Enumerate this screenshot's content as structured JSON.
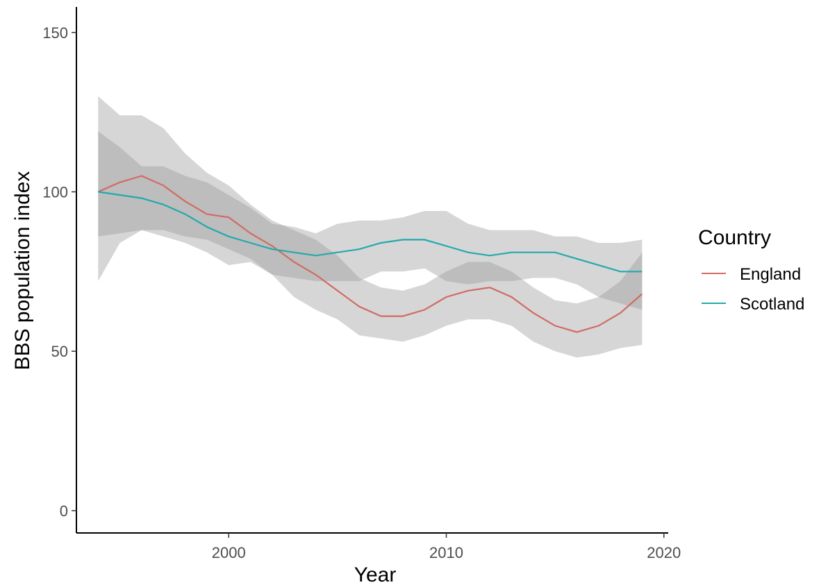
{
  "chart_data": {
    "type": "line",
    "title": "",
    "xlabel": "Year",
    "ylabel": "BBS population index",
    "xlim": [
      1993,
      2020.2
    ],
    "ylim": [
      -7,
      158
    ],
    "x_ticks": [
      2000,
      2010,
      2020
    ],
    "y_ticks": [
      0,
      50,
      100,
      150
    ],
    "grid": false,
    "legend": {
      "title": "Country",
      "position": "right"
    },
    "x": [
      1994,
      1995,
      1996,
      1997,
      1998,
      1999,
      2000,
      2001,
      2002,
      2003,
      2004,
      2005,
      2006,
      2007,
      2008,
      2009,
      2010,
      2011,
      2012,
      2013,
      2014,
      2015,
      2016,
      2017,
      2018,
      2019
    ],
    "series": [
      {
        "name": "England",
        "color": "#d06b63",
        "values": [
          100,
          103,
          105,
          102,
          97,
          93,
          92,
          87,
          83,
          78,
          74,
          69,
          64,
          61,
          61,
          63,
          67,
          69,
          70,
          67,
          62,
          58,
          56,
          58,
          62,
          68
        ],
        "ci_lower": [
          72,
          84,
          88,
          88,
          86,
          85,
          82,
          79,
          74,
          67,
          63,
          60,
          55,
          54,
          53,
          55,
          58,
          60,
          60,
          58,
          53,
          50,
          48,
          49,
          51,
          52
        ],
        "ci_upper": [
          130,
          124,
          124,
          120,
          112,
          106,
          102,
          96,
          91,
          88,
          85,
          80,
          73,
          70,
          69,
          71,
          75,
          78,
          78,
          75,
          70,
          66,
          65,
          67,
          72,
          81
        ]
      },
      {
        "name": "Scotland",
        "color": "#22a9ad",
        "values": [
          100,
          99,
          98,
          96,
          93,
          89,
          86,
          84,
          82,
          81,
          80,
          81,
          82,
          84,
          85,
          85,
          83,
          81,
          80,
          81,
          81,
          81,
          79,
          77,
          75,
          75
        ],
        "ci_lower": [
          86,
          87,
          88,
          86,
          84,
          81,
          77,
          78,
          74,
          73,
          72,
          72,
          72,
          75,
          75,
          76,
          72,
          71,
          72,
          72,
          73,
          73,
          71,
          67,
          65,
          63
        ],
        "ci_upper": [
          119,
          114,
          108,
          108,
          105,
          103,
          99,
          95,
          90,
          89,
          87,
          90,
          91,
          91,
          92,
          94,
          94,
          90,
          88,
          88,
          88,
          86,
          86,
          84,
          84,
          85
        ]
      }
    ]
  }
}
